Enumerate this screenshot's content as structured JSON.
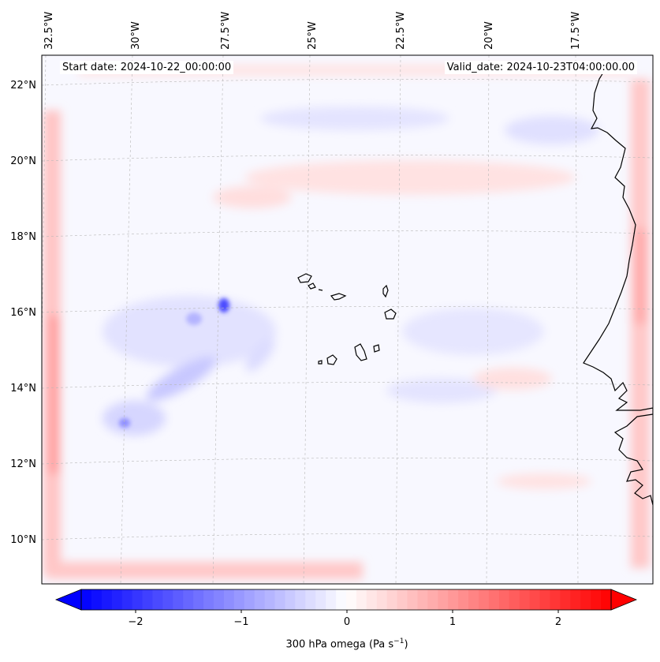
{
  "map": {
    "title": "300 hPa omega",
    "lon_labels": [
      "32.5°W",
      "30°W",
      "27.5°W",
      "25°W",
      "22.5°W",
      "20°W",
      "17.5°W"
    ],
    "lat_labels": [
      "22°N",
      "20°N",
      "18°N",
      "16°N",
      "14°N",
      "12°N",
      "10°N"
    ],
    "start_date": "Start date: 2024-10-22_00:00:00",
    "valid_date": "Valid_date: 2024-10-23T04:00:00.00"
  },
  "colorbar": {
    "ticks": [
      "−2",
      "−1",
      "0",
      "1",
      "2"
    ],
    "label_prefix": "300 hPa omega (Pa s",
    "label_exp": "−1",
    "label_suffix": ")",
    "min": -2.6,
    "max": 2.6,
    "colors": {
      "min": "#0000ff",
      "mid": "#ffffff",
      "max": "#ff0000"
    }
  },
  "chart_data": {
    "type": "heatmap",
    "variable": "300 hPa omega",
    "units": "Pa s^-1",
    "vmin": -2.6,
    "vmax": 2.6,
    "lon_range": [
      -33,
      -15.5
    ],
    "lat_range": [
      9,
      22.8
    ],
    "features": [
      {
        "name": "strong-ascent-spot",
        "lon": -28.0,
        "lat": 16.2,
        "value": -1.5
      },
      {
        "name": "ascent-spot-southwest",
        "lon": -31.0,
        "lat": 13.1,
        "value": -1.2
      },
      {
        "name": "boundary-west-strip",
        "lon": -32.5,
        "lat": 14.0,
        "value": 1.0
      },
      {
        "name": "boundary-east-strip",
        "lon": -15.8,
        "lat": 17.0,
        "value": 1.0
      },
      {
        "name": "boundary-south-strip",
        "lon": -27.5,
        "lat": 9.2,
        "value": 0.8
      }
    ]
  }
}
